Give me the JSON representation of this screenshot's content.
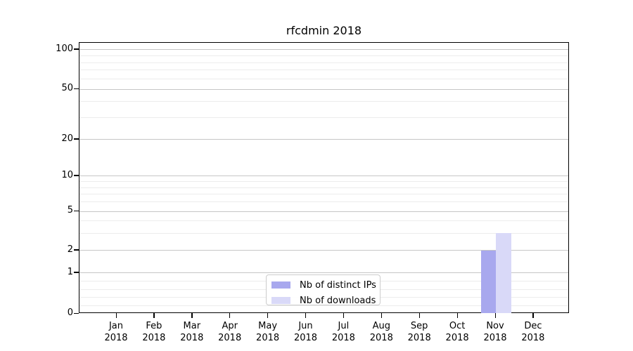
{
  "chart_data": {
    "type": "bar",
    "title": "rfcdmin 2018",
    "categories": [
      {
        "month": "Jan",
        "year": "2018"
      },
      {
        "month": "Feb",
        "year": "2018"
      },
      {
        "month": "Mar",
        "year": "2018"
      },
      {
        "month": "Apr",
        "year": "2018"
      },
      {
        "month": "May",
        "year": "2018"
      },
      {
        "month": "Jun",
        "year": "2018"
      },
      {
        "month": "Jul",
        "year": "2018"
      },
      {
        "month": "Aug",
        "year": "2018"
      },
      {
        "month": "Sep",
        "year": "2018"
      },
      {
        "month": "Oct",
        "year": "2018"
      },
      {
        "month": "Nov",
        "year": "2018"
      },
      {
        "month": "Dec",
        "year": "2018"
      }
    ],
    "series": [
      {
        "name": "Nb of distinct IPs",
        "color": "#a8a8ee",
        "values": [
          0,
          0,
          0,
          0,
          0,
          0,
          0,
          0,
          0,
          0,
          2,
          0
        ]
      },
      {
        "name": "Nb of downloads",
        "color": "#d9d9f8",
        "values": [
          0,
          0,
          0,
          0,
          0,
          0,
          0,
          0,
          0,
          0,
          3,
          0
        ]
      }
    ],
    "y_ticks": [
      0,
      1,
      2,
      5,
      10,
      20,
      50,
      100
    ],
    "ylim": [
      0,
      100
    ],
    "yscale": "symlog",
    "grid": "on",
    "legend_position": "lower center",
    "xlabel": "",
    "ylabel": ""
  }
}
